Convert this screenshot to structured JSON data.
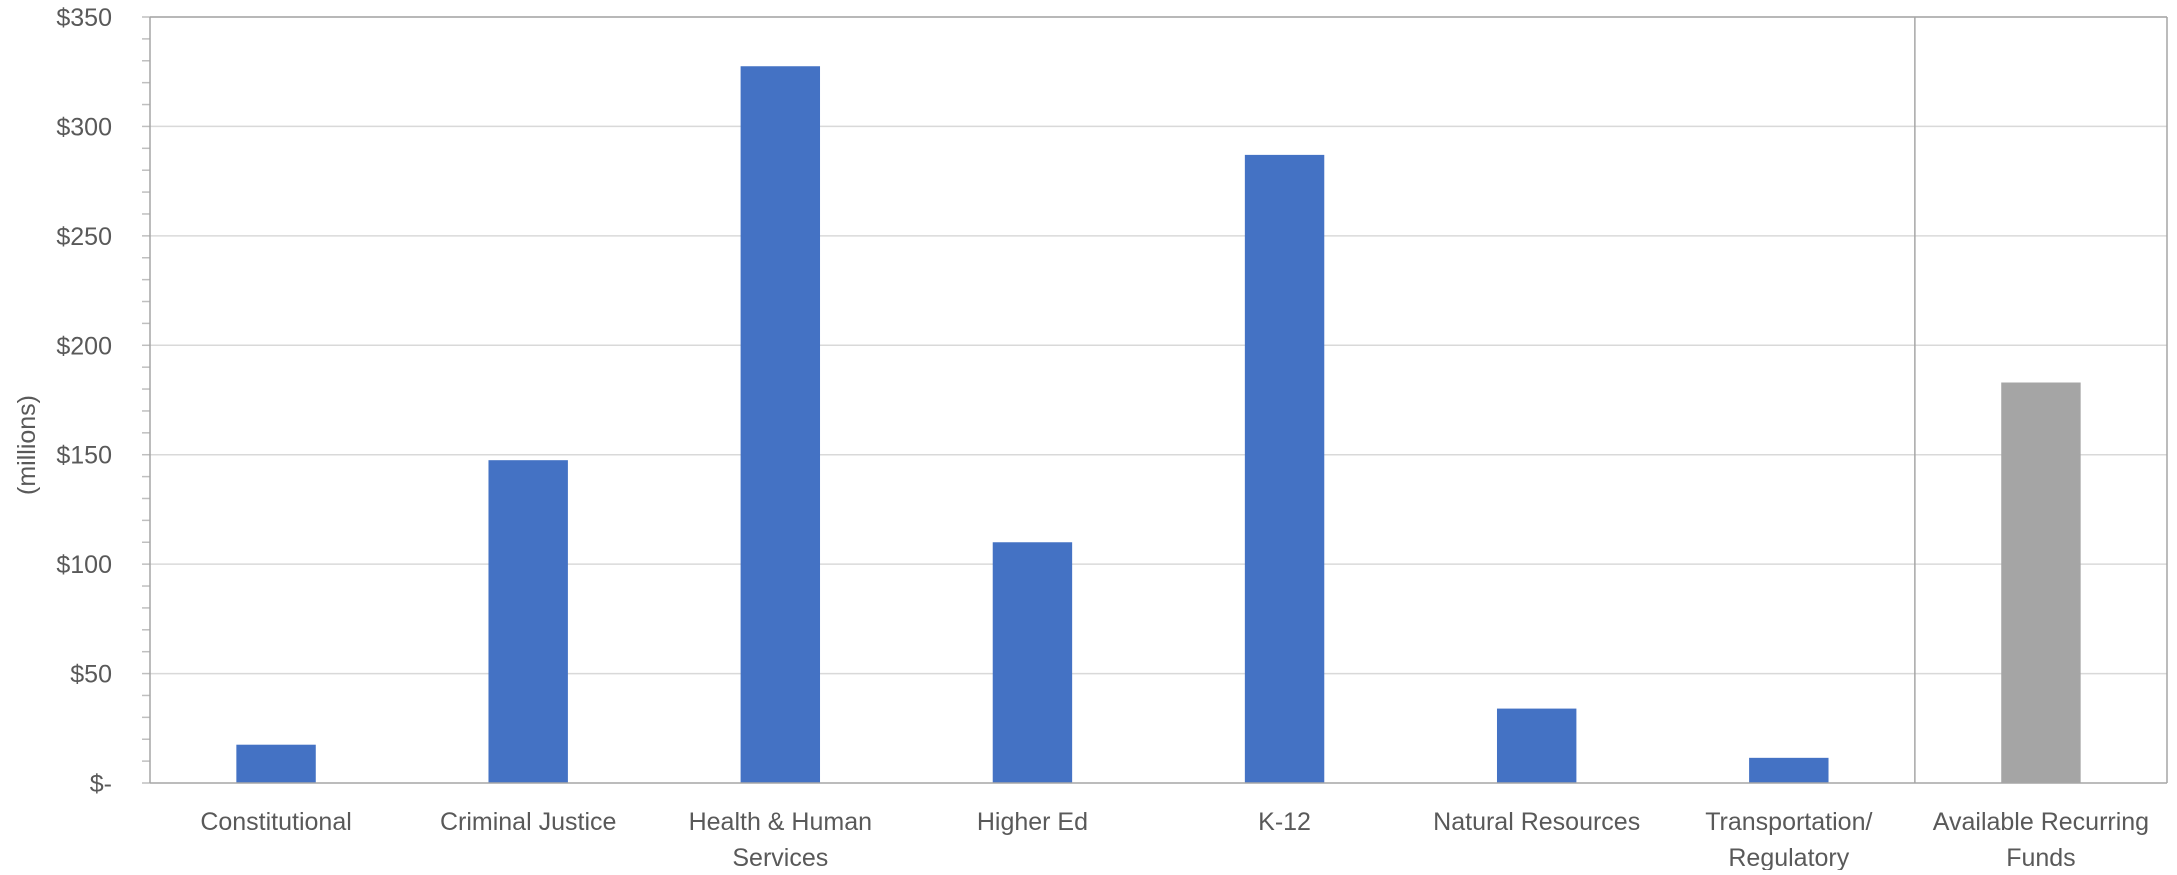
{
  "chart_data": {
    "type": "bar",
    "title": "",
    "xlabel": "",
    "ylabel": "(millions)",
    "ylim": [
      0,
      350
    ],
    "ytick_step": 50,
    "ytick_labels": [
      "$-",
      "$50",
      "$100",
      "$150",
      "$200",
      "$250",
      "$300",
      "$350"
    ],
    "grid": true,
    "categories": [
      [
        "Constitutional"
      ],
      [
        "Criminal Justice"
      ],
      [
        "Health & Human",
        "Services"
      ],
      [
        "Higher Ed"
      ],
      [
        "K-12"
      ],
      [
        "Natural Resources"
      ],
      [
        "Transportation/",
        "Regulatory"
      ],
      [
        "Available Recurring",
        "Funds"
      ]
    ],
    "values": [
      17.5,
      147.5,
      327.5,
      110,
      287,
      34,
      11.5,
      183
    ],
    "bar_colors": [
      "#4472c4",
      "#4472c4",
      "#4472c4",
      "#4472c4",
      "#4472c4",
      "#4472c4",
      "#4472c4",
      "#a5a5a5"
    ],
    "separator_before_category": 7
  }
}
